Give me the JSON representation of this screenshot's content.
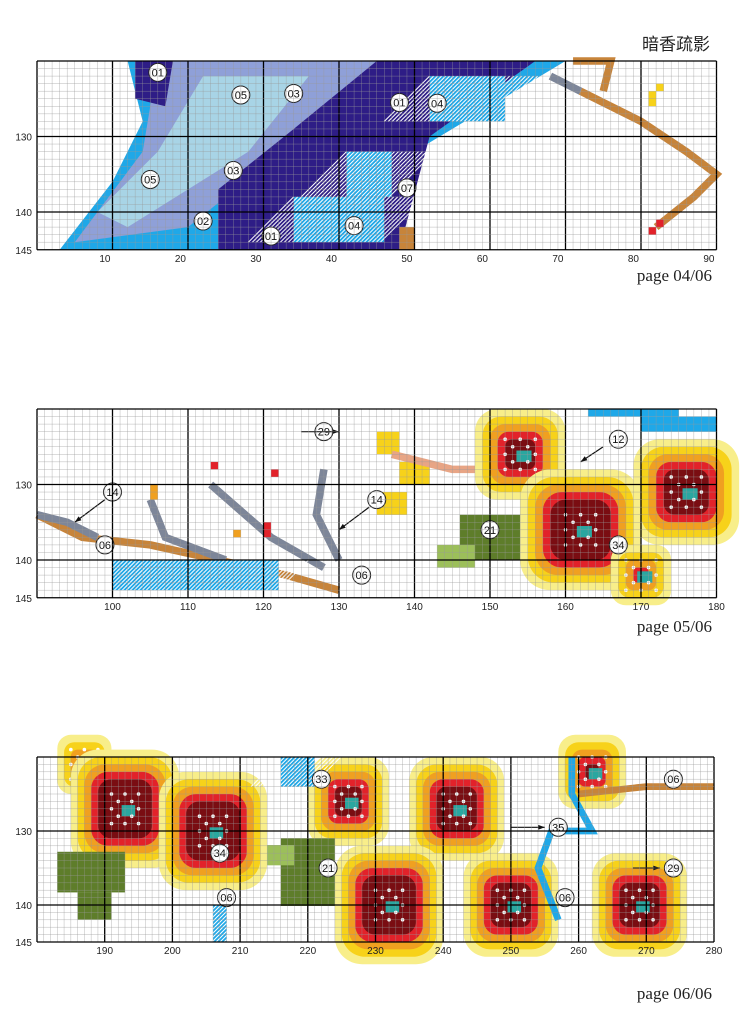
{
  "title": "暗香疏影",
  "pages": [
    {
      "label": "page 04/06",
      "x_range": [
        1,
        90
      ],
      "x_ticks": [
        "10",
        "20",
        "30",
        "40",
        "50",
        "60",
        "70",
        "80",
        "90"
      ],
      "y_ticks": [
        "130",
        "140",
        "145"
      ],
      "markers": [
        "01",
        "05",
        "03",
        "01",
        "04",
        "05",
        "03",
        "07",
        "02",
        "01",
        "04"
      ]
    },
    {
      "label": "page 05/06",
      "x_range": [
        91,
        180
      ],
      "x_ticks": [
        "100",
        "110",
        "120",
        "130",
        "140",
        "150",
        "160",
        "170",
        "180"
      ],
      "y_ticks": [
        "130",
        "140",
        "145"
      ],
      "markers": [
        "29",
        "12",
        "14",
        "14",
        "21",
        "34",
        "06",
        "06"
      ]
    },
    {
      "label": "page 06/06",
      "x_range": [
        181,
        280
      ],
      "x_ticks": [
        "190",
        "200",
        "210",
        "220",
        "230",
        "240",
        "250",
        "260",
        "270",
        "280"
      ],
      "y_ticks": [
        "130",
        "140",
        "145"
      ],
      "markers": [
        "33",
        "35",
        "34",
        "21",
        "06",
        "06",
        "29",
        "06"
      ]
    }
  ],
  "colors": {
    "grid_line": "#9a9a9a",
    "grid_major": "#000000",
    "navy": "#2e1d86",
    "sky": "#1fa8e8",
    "lavender": "#8fa0d8",
    "pale_blue": "#a8d4e6",
    "branch_brown": "#c7843a",
    "branch_grey": "#7d8699",
    "red": "#e2222a",
    "dark_red": "#7a0d12",
    "orange": "#f0a020",
    "yellow": "#f7d21a",
    "light_yellow": "#f8ee8a",
    "teal": "#2aa7a0",
    "green_dark": "#5e7d2a",
    "green_light": "#9cbf5a",
    "peach": "#e8a585"
  }
}
